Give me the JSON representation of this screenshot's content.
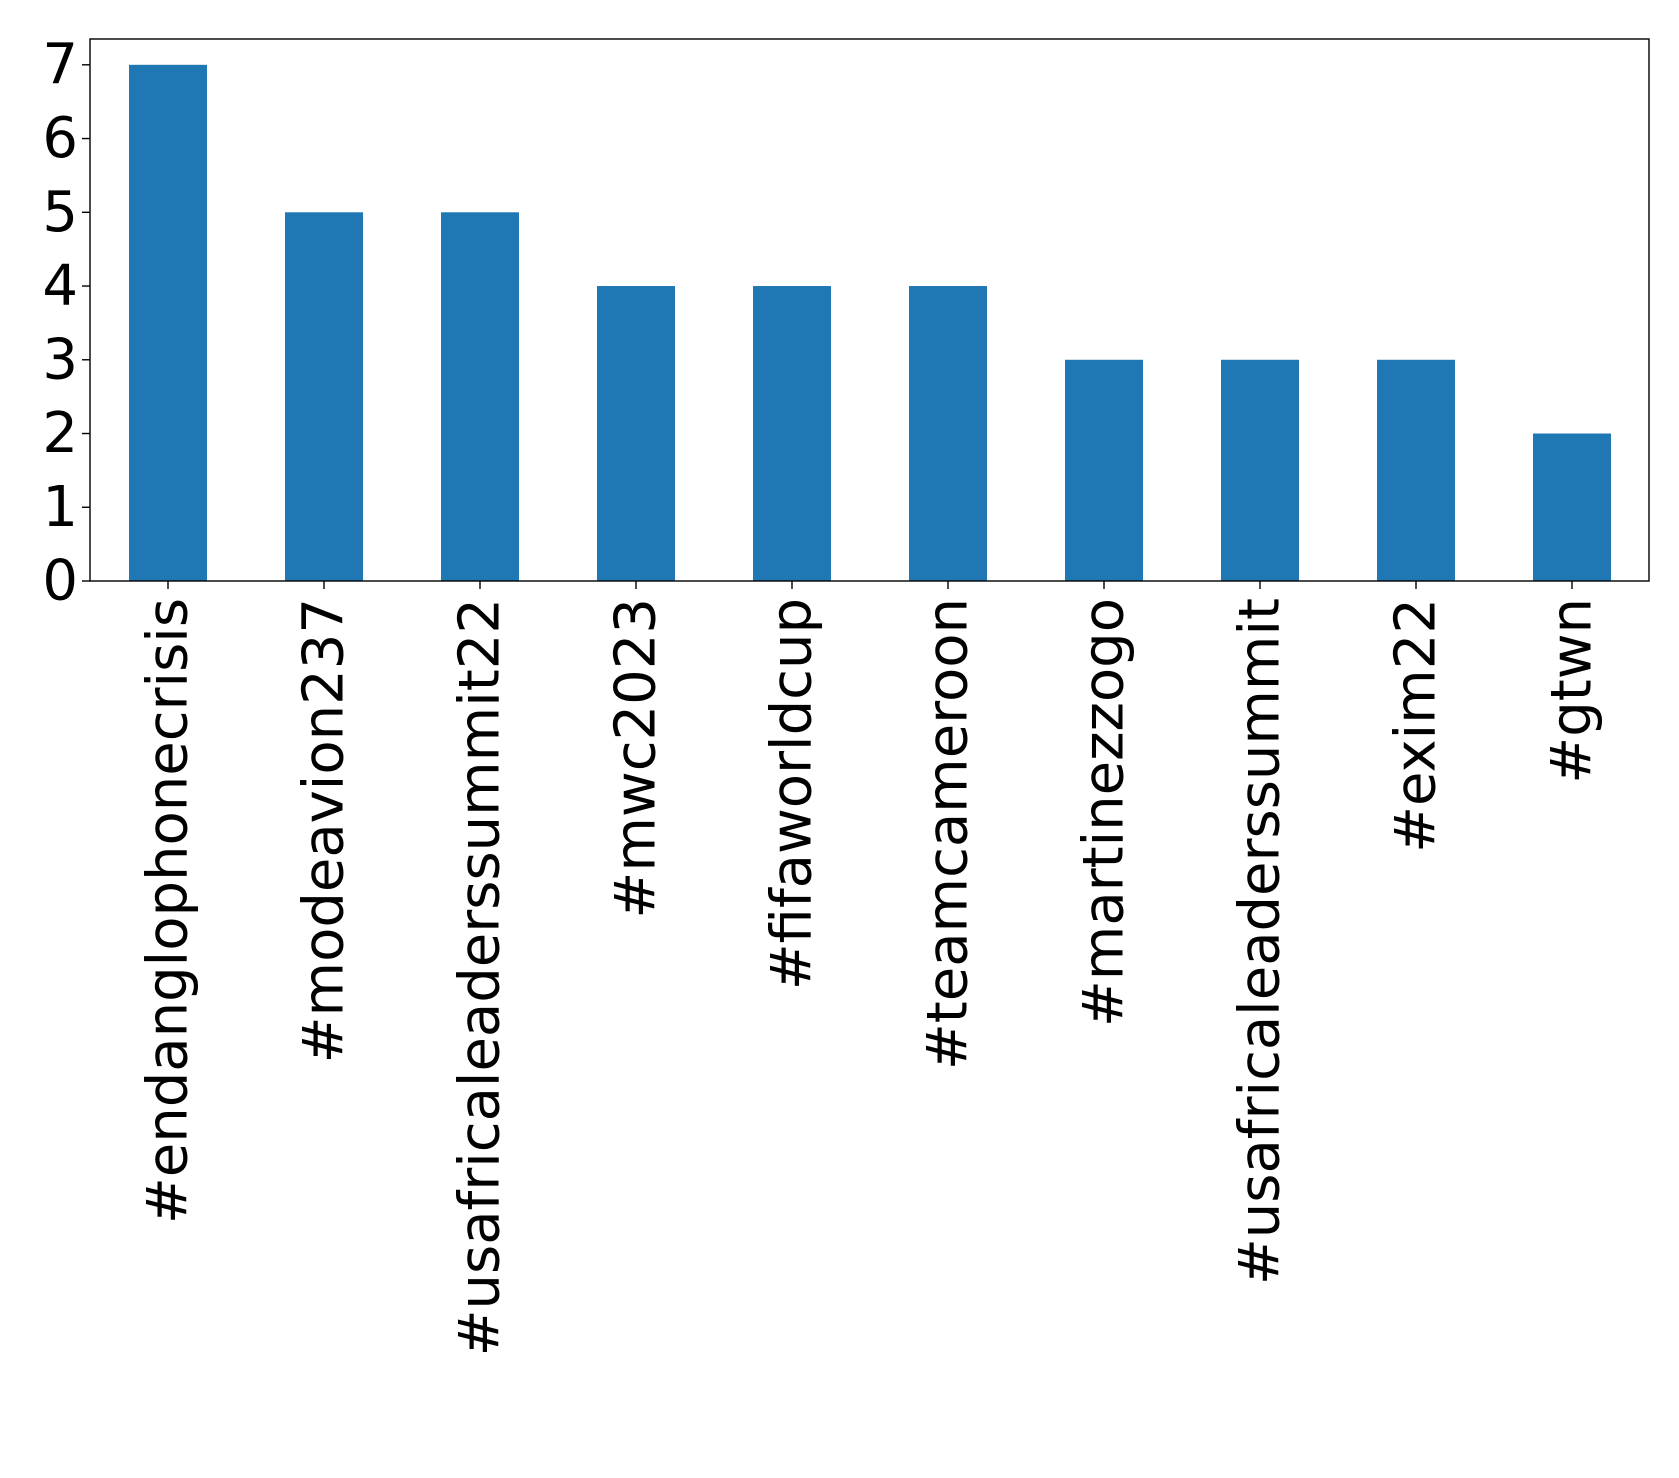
{
  "chart_data": {
    "type": "bar",
    "title": "",
    "xlabel": "",
    "ylabel": "",
    "categories": [
      "#endanglophonecrisis",
      "#modeavion237",
      "#usafricaleaderssummit22",
      "#mwc2023",
      "#fifaworldcup",
      "#teamcameroon",
      "#martinezzogo",
      "#usafricaleaderssummit",
      "#exim22",
      "#gtwn"
    ],
    "values": [
      7,
      5,
      5,
      4,
      4,
      4,
      3,
      3,
      3,
      2
    ],
    "yticks": [
      "0",
      "1",
      "2",
      "3",
      "4",
      "5",
      "6",
      "7"
    ],
    "ylim": [
      0,
      7.35
    ],
    "grid": false,
    "legend": "none",
    "bar_color": "#1f77b4"
  }
}
